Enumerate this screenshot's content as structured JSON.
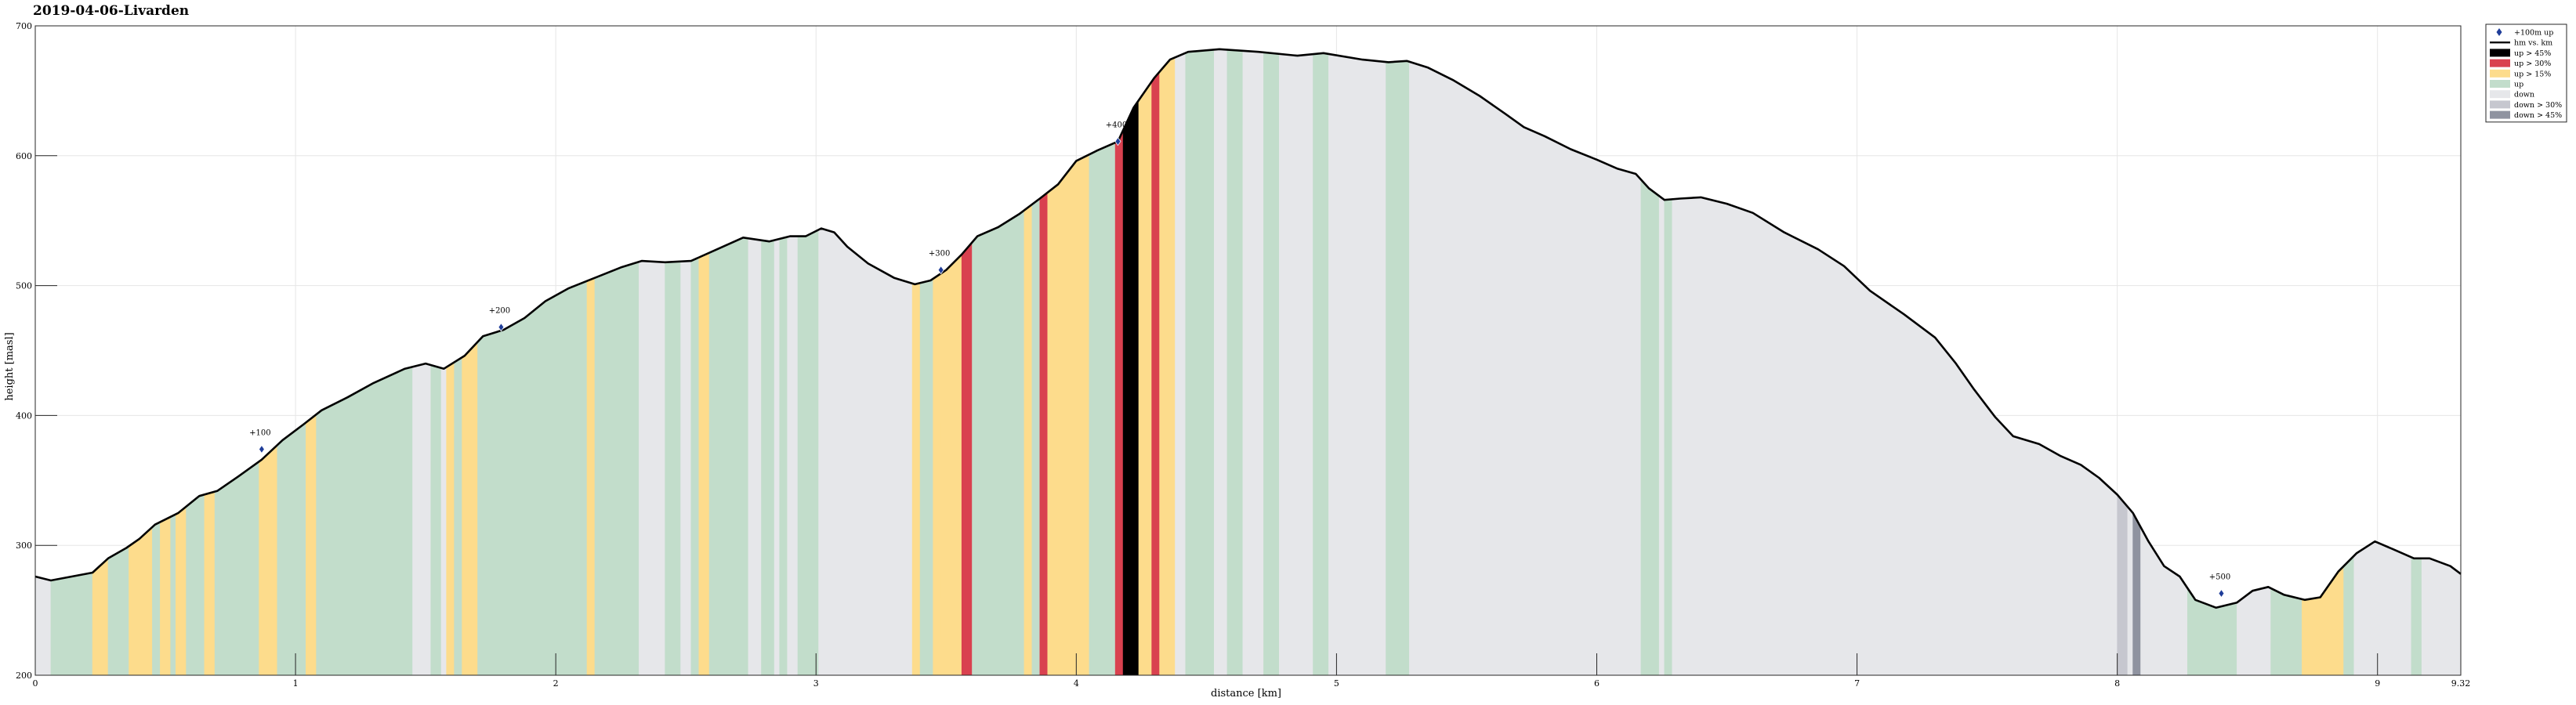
{
  "chart_data": {
    "type": "area",
    "title": "2019-04-06-Livarden",
    "xlabel": "distance [km]",
    "ylabel": "height [masl]",
    "xlim": [
      0,
      9.32
    ],
    "ylim": [
      200,
      700
    ],
    "x_ticks": [
      0,
      1,
      2,
      3,
      4,
      5,
      6,
      7,
      8,
      9,
      9.32
    ],
    "y_ticks": [
      200,
      300,
      400,
      500,
      600,
      700
    ],
    "grid": true,
    "legend_position": "top-right",
    "legend": [
      {
        "label": "+100m up",
        "kind": "marker",
        "color": "#1f3d99"
      },
      {
        "label": "hm vs. km",
        "kind": "line",
        "color": "#000000"
      },
      {
        "label": "up > 45%",
        "kind": "patch",
        "color": "#000000"
      },
      {
        "label": "up > 30%",
        "kind": "patch",
        "color": "#d9414f"
      },
      {
        "label": "up > 15%",
        "kind": "patch",
        "color": "#fddc8c"
      },
      {
        "label": "up",
        "kind": "patch",
        "color": "#c2ddcb"
      },
      {
        "label": "down",
        "kind": "patch",
        "color": "#e6e7ea"
      },
      {
        "label": "down > 30%",
        "kind": "patch",
        "color": "#c6c7cf"
      },
      {
        "label": "down > 45%",
        "kind": "patch",
        "color": "#8f93a0"
      }
    ],
    "profile": [
      [
        0.0,
        276
      ],
      [
        0.06,
        273
      ],
      [
        0.14,
        276
      ],
      [
        0.22,
        279
      ],
      [
        0.28,
        290
      ],
      [
        0.35,
        298
      ],
      [
        0.4,
        305
      ],
      [
        0.46,
        316
      ],
      [
        0.55,
        325
      ],
      [
        0.63,
        338
      ],
      [
        0.7,
        342
      ],
      [
        0.78,
        353
      ],
      [
        0.87,
        366
      ],
      [
        0.95,
        381
      ],
      [
        1.03,
        393
      ],
      [
        1.1,
        404
      ],
      [
        1.2,
        414
      ],
      [
        1.3,
        425
      ],
      [
        1.42,
        436
      ],
      [
        1.5,
        440
      ],
      [
        1.57,
        436
      ],
      [
        1.65,
        446
      ],
      [
        1.72,
        461
      ],
      [
        1.8,
        466
      ],
      [
        1.88,
        475
      ],
      [
        1.96,
        488
      ],
      [
        2.05,
        498
      ],
      [
        2.15,
        506
      ],
      [
        2.25,
        514
      ],
      [
        2.33,
        519
      ],
      [
        2.42,
        518
      ],
      [
        2.52,
        519
      ],
      [
        2.62,
        528
      ],
      [
        2.72,
        537
      ],
      [
        2.82,
        534
      ],
      [
        2.9,
        538
      ],
      [
        2.96,
        538
      ],
      [
        3.02,
        544
      ],
      [
        3.07,
        541
      ],
      [
        3.12,
        530
      ],
      [
        3.2,
        517
      ],
      [
        3.3,
        506
      ],
      [
        3.38,
        501
      ],
      [
        3.44,
        504
      ],
      [
        3.5,
        512
      ],
      [
        3.56,
        524
      ],
      [
        3.62,
        538
      ],
      [
        3.7,
        545
      ],
      [
        3.78,
        555
      ],
      [
        3.86,
        567
      ],
      [
        3.93,
        578
      ],
      [
        4.0,
        596
      ],
      [
        4.08,
        604
      ],
      [
        4.16,
        611
      ],
      [
        4.22,
        637
      ],
      [
        4.3,
        660
      ],
      [
        4.36,
        674
      ],
      [
        4.43,
        680
      ],
      [
        4.55,
        682
      ],
      [
        4.7,
        680
      ],
      [
        4.85,
        677
      ],
      [
        4.95,
        679
      ],
      [
        5.1,
        674
      ],
      [
        5.2,
        672
      ],
      [
        5.27,
        673
      ],
      [
        5.35,
        668
      ],
      [
        5.45,
        658
      ],
      [
        5.55,
        646
      ],
      [
        5.65,
        632
      ],
      [
        5.72,
        622
      ],
      [
        5.8,
        615
      ],
      [
        5.9,
        605
      ],
      [
        6.0,
        597
      ],
      [
        6.08,
        590
      ],
      [
        6.15,
        586
      ],
      [
        6.2,
        575
      ],
      [
        6.26,
        566
      ],
      [
        6.32,
        567
      ],
      [
        6.4,
        568
      ],
      [
        6.5,
        563
      ],
      [
        6.6,
        556
      ],
      [
        6.72,
        541
      ],
      [
        6.85,
        528
      ],
      [
        6.95,
        515
      ],
      [
        7.05,
        496
      ],
      [
        7.18,
        478
      ],
      [
        7.3,
        460
      ],
      [
        7.38,
        440
      ],
      [
        7.45,
        420
      ],
      [
        7.53,
        399
      ],
      [
        7.6,
        384
      ],
      [
        7.7,
        378
      ],
      [
        7.78,
        369
      ],
      [
        7.86,
        362
      ],
      [
        7.93,
        352
      ],
      [
        8.0,
        339
      ],
      [
        8.06,
        325
      ],
      [
        8.12,
        303
      ],
      [
        8.18,
        284
      ],
      [
        8.24,
        276
      ],
      [
        8.3,
        258
      ],
      [
        8.38,
        252
      ],
      [
        8.46,
        256
      ],
      [
        8.52,
        265
      ],
      [
        8.58,
        268
      ],
      [
        8.64,
        262
      ],
      [
        8.72,
        258
      ],
      [
        8.78,
        260
      ],
      [
        8.85,
        280
      ],
      [
        8.92,
        294
      ],
      [
        8.99,
        303
      ],
      [
        9.06,
        297
      ],
      [
        9.14,
        290
      ],
      [
        9.2,
        290
      ],
      [
        9.28,
        284
      ],
      [
        9.32,
        278
      ]
    ],
    "segments": [
      {
        "start": 0.0,
        "end": 0.06,
        "category": "down"
      },
      {
        "start": 0.06,
        "end": 0.22,
        "category": "up"
      },
      {
        "start": 0.22,
        "end": 0.28,
        "category": "up > 15%"
      },
      {
        "start": 0.28,
        "end": 0.36,
        "category": "up"
      },
      {
        "start": 0.36,
        "end": 0.45,
        "category": "up > 15%"
      },
      {
        "start": 0.45,
        "end": 0.48,
        "category": "up"
      },
      {
        "start": 0.48,
        "end": 0.52,
        "category": "up > 15%"
      },
      {
        "start": 0.52,
        "end": 0.54,
        "category": "up"
      },
      {
        "start": 0.54,
        "end": 0.58,
        "category": "up > 15%"
      },
      {
        "start": 0.58,
        "end": 0.65,
        "category": "up"
      },
      {
        "start": 0.65,
        "end": 0.69,
        "category": "up > 15%"
      },
      {
        "start": 0.69,
        "end": 0.86,
        "category": "up"
      },
      {
        "start": 0.86,
        "end": 0.93,
        "category": "up > 15%"
      },
      {
        "start": 0.93,
        "end": 1.04,
        "category": "up"
      },
      {
        "start": 1.04,
        "end": 1.08,
        "category": "up > 15%"
      },
      {
        "start": 1.08,
        "end": 1.45,
        "category": "up"
      },
      {
        "start": 1.45,
        "end": 1.52,
        "category": "down"
      },
      {
        "start": 1.52,
        "end": 1.56,
        "category": "up"
      },
      {
        "start": 1.56,
        "end": 1.58,
        "category": "down"
      },
      {
        "start": 1.58,
        "end": 1.61,
        "category": "up > 15%"
      },
      {
        "start": 1.61,
        "end": 1.64,
        "category": "up"
      },
      {
        "start": 1.64,
        "end": 1.7,
        "category": "up > 15%"
      },
      {
        "start": 1.7,
        "end": 2.12,
        "category": "up"
      },
      {
        "start": 2.12,
        "end": 2.15,
        "category": "up > 15%"
      },
      {
        "start": 2.15,
        "end": 2.32,
        "category": "up"
      },
      {
        "start": 2.32,
        "end": 2.42,
        "category": "down"
      },
      {
        "start": 2.42,
        "end": 2.48,
        "category": "up"
      },
      {
        "start": 2.48,
        "end": 2.52,
        "category": "down"
      },
      {
        "start": 2.52,
        "end": 2.55,
        "category": "up"
      },
      {
        "start": 2.55,
        "end": 2.59,
        "category": "up > 15%"
      },
      {
        "start": 2.59,
        "end": 2.74,
        "category": "up"
      },
      {
        "start": 2.74,
        "end": 2.79,
        "category": "down"
      },
      {
        "start": 2.79,
        "end": 2.84,
        "category": "up"
      },
      {
        "start": 2.84,
        "end": 2.86,
        "category": "down"
      },
      {
        "start": 2.86,
        "end": 2.89,
        "category": "up"
      },
      {
        "start": 2.89,
        "end": 2.93,
        "category": "down"
      },
      {
        "start": 2.93,
        "end": 3.01,
        "category": "up"
      },
      {
        "start": 3.01,
        "end": 3.37,
        "category": "down"
      },
      {
        "start": 3.37,
        "end": 3.4,
        "category": "up > 15%"
      },
      {
        "start": 3.4,
        "end": 3.45,
        "category": "up"
      },
      {
        "start": 3.45,
        "end": 3.48,
        "category": "up > 15%"
      },
      {
        "start": 3.48,
        "end": 3.56,
        "category": "up > 15%"
      },
      {
        "start": 3.56,
        "end": 3.6,
        "category": "up > 30%"
      },
      {
        "start": 3.6,
        "end": 3.8,
        "category": "up"
      },
      {
        "start": 3.8,
        "end": 3.83,
        "category": "up > 15%"
      },
      {
        "start": 3.83,
        "end": 3.86,
        "category": "up"
      },
      {
        "start": 3.86,
        "end": 3.89,
        "category": "up > 30%"
      },
      {
        "start": 3.89,
        "end": 4.05,
        "category": "up > 15%"
      },
      {
        "start": 4.05,
        "end": 4.15,
        "category": "up"
      },
      {
        "start": 4.15,
        "end": 4.18,
        "category": "up > 30%"
      },
      {
        "start": 4.18,
        "end": 4.24,
        "category": "up > 45%"
      },
      {
        "start": 4.24,
        "end": 4.29,
        "category": "up > 15%"
      },
      {
        "start": 4.29,
        "end": 4.32,
        "category": "up > 30%"
      },
      {
        "start": 4.32,
        "end": 4.38,
        "category": "up > 15%"
      },
      {
        "start": 4.38,
        "end": 4.42,
        "category": "down"
      },
      {
        "start": 4.42,
        "end": 4.53,
        "category": "up"
      },
      {
        "start": 4.53,
        "end": 4.58,
        "category": "down"
      },
      {
        "start": 4.58,
        "end": 4.64,
        "category": "up"
      },
      {
        "start": 4.64,
        "end": 4.72,
        "category": "down"
      },
      {
        "start": 4.72,
        "end": 4.78,
        "category": "up"
      },
      {
        "start": 4.78,
        "end": 4.91,
        "category": "down"
      },
      {
        "start": 4.91,
        "end": 4.97,
        "category": "up"
      },
      {
        "start": 4.97,
        "end": 5.19,
        "category": "down"
      },
      {
        "start": 5.19,
        "end": 5.28,
        "category": "up"
      },
      {
        "start": 5.28,
        "end": 6.17,
        "category": "down"
      },
      {
        "start": 6.17,
        "end": 6.24,
        "category": "up"
      },
      {
        "start": 6.24,
        "end": 6.26,
        "category": "down"
      },
      {
        "start": 6.26,
        "end": 6.29,
        "category": "up"
      },
      {
        "start": 6.29,
        "end": 8.0,
        "category": "down"
      },
      {
        "start": 8.0,
        "end": 8.04,
        "category": "down > 30%"
      },
      {
        "start": 8.04,
        "end": 8.06,
        "category": "down"
      },
      {
        "start": 8.06,
        "end": 8.09,
        "category": "down > 45%"
      },
      {
        "start": 8.09,
        "end": 8.27,
        "category": "down"
      },
      {
        "start": 8.27,
        "end": 8.46,
        "category": "up"
      },
      {
        "start": 8.46,
        "end": 8.59,
        "category": "down"
      },
      {
        "start": 8.59,
        "end": 8.71,
        "category": "up"
      },
      {
        "start": 8.71,
        "end": 8.87,
        "category": "up > 15%"
      },
      {
        "start": 8.87,
        "end": 8.91,
        "category": "up"
      },
      {
        "start": 8.91,
        "end": 9.13,
        "category": "down"
      },
      {
        "start": 9.13,
        "end": 9.17,
        "category": "up"
      },
      {
        "start": 9.17,
        "end": 9.32,
        "category": "down"
      }
    ],
    "markers": [
      {
        "label": "+100",
        "x": 0.87,
        "y": 374
      },
      {
        "label": "+200",
        "x": 1.79,
        "y": 468
      },
      {
        "label": "+300",
        "x": 3.48,
        "y": 512
      },
      {
        "label": "+400",
        "x": 4.16,
        "y": 611
      },
      {
        "label": "+500",
        "x": 8.4,
        "y": 263
      }
    ]
  }
}
